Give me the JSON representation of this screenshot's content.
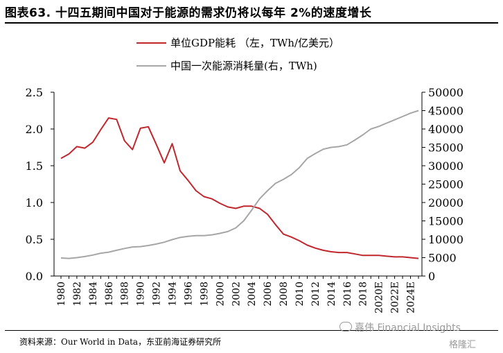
{
  "title": "图表63. 十四五期间中国对于能源的需求仍将以每年 2%的速度增长",
  "source": "资料来源：Our World in Data，东亚前海证券研究所",
  "watermark": "嘉伟 Financial Insights",
  "brand": "格隆汇",
  "chart_data": {
    "type": "line",
    "categories": [
      "1980",
      "1982",
      "1984",
      "1986",
      "1988",
      "1990",
      "1992",
      "1994",
      "1996",
      "1998",
      "2000",
      "2002",
      "2004",
      "2006",
      "2008",
      "2010",
      "2012",
      "2014",
      "2016",
      "2018",
      "2020E",
      "2022E",
      "2024E"
    ],
    "x": [
      1980,
      1981,
      1982,
      1983,
      1984,
      1985,
      1986,
      1987,
      1988,
      1989,
      1990,
      1991,
      1992,
      1993,
      1994,
      1995,
      1996,
      1997,
      1998,
      1999,
      2000,
      2001,
      2002,
      2003,
      2004,
      2005,
      2006,
      2007,
      2008,
      2009,
      2010,
      2011,
      2012,
      2013,
      2014,
      2015,
      2016,
      2017,
      2018,
      2019,
      2020,
      2021,
      2022,
      2023,
      2024,
      2025
    ],
    "ylim_left": [
      0,
      2.5
    ],
    "yticks_left": [
      "0.0",
      "0.5",
      "1.0",
      "1.5",
      "2.0",
      "2.5"
    ],
    "ylim_right": [
      0,
      50000
    ],
    "yticks_right": [
      "0",
      "5000",
      "10000",
      "15000",
      "20000",
      "25000",
      "30000",
      "35000",
      "40000",
      "45000",
      "50000"
    ],
    "legend_placement": "top",
    "grid": false,
    "series": [
      {
        "name": "单位GDP能耗 （左，TWh/亿美元）",
        "axis": "left",
        "color": "#c0272d",
        "values": [
          1.6,
          1.66,
          1.76,
          1.74,
          1.82,
          1.99,
          2.15,
          2.13,
          1.84,
          1.72,
          2.01,
          2.03,
          1.79,
          1.54,
          1.8,
          1.43,
          1.3,
          1.16,
          1.08,
          1.05,
          0.99,
          0.94,
          0.92,
          0.95,
          0.95,
          0.92,
          0.84,
          0.7,
          0.57,
          0.53,
          0.48,
          0.42,
          0.38,
          0.35,
          0.33,
          0.32,
          0.32,
          0.3,
          0.28,
          0.28,
          0.28,
          0.27,
          0.26,
          0.26,
          0.25,
          0.24
        ]
      },
      {
        "name": "中国一次能源消耗量(右，TWh)",
        "axis": "right",
        "color": "#a6a6a6",
        "values": [
          4900,
          4800,
          5000,
          5300,
          5700,
          6200,
          6500,
          7000,
          7500,
          7900,
          8000,
          8300,
          8700,
          9200,
          9900,
          10500,
          10800,
          11000,
          11000,
          11200,
          11600,
          12100,
          13100,
          15000,
          17900,
          21000,
          23200,
          25200,
          26300,
          27600,
          29500,
          32000,
          33300,
          34500,
          35000,
          35200,
          35700,
          37000,
          38400,
          40000,
          40700,
          41600,
          42500,
          43400,
          44300,
          45000
        ]
      }
    ]
  }
}
